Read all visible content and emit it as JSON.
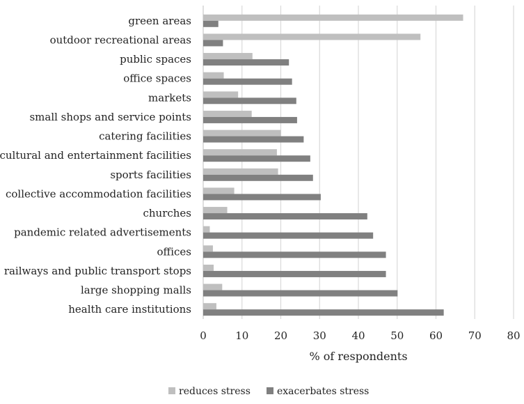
{
  "chart_data": {
    "type": "bar",
    "orientation": "horizontal",
    "title": "",
    "xlabel": "% of respondents",
    "ylabel": "",
    "xlim": [
      0,
      80
    ],
    "xticks": [
      0,
      10,
      20,
      30,
      40,
      50,
      60,
      70,
      80
    ],
    "grid": "vertical",
    "legend_position": "bottom",
    "categories": [
      "green areas",
      "outdoor recreational areas",
      "public spaces",
      "office spaces",
      "markets",
      "small shops and service points",
      "catering facilities",
      "cultural and entertainment facilities",
      "sports facilities",
      "collective accommodation facilities",
      "churches",
      "pandemic related advertisements",
      "offices",
      "railways and public transport stops",
      "large shopping malls",
      "health care institutions"
    ],
    "series": [
      {
        "name": "reduces stress",
        "color": "#bfbfbf",
        "values": [
          67,
          56,
          12.7,
          5.3,
          9,
          12.5,
          20,
          19,
          19.3,
          8,
          6.2,
          1.7,
          2.5,
          2.7,
          4.9,
          3.4
        ]
      },
      {
        "name": "exacerbates stress",
        "color": "#808080",
        "values": [
          3.9,
          5.1,
          22.1,
          22.9,
          24,
          24.2,
          25.9,
          27.6,
          28.3,
          30.3,
          42.3,
          43.8,
          47.1,
          47.1,
          50.1,
          62
        ]
      }
    ]
  }
}
